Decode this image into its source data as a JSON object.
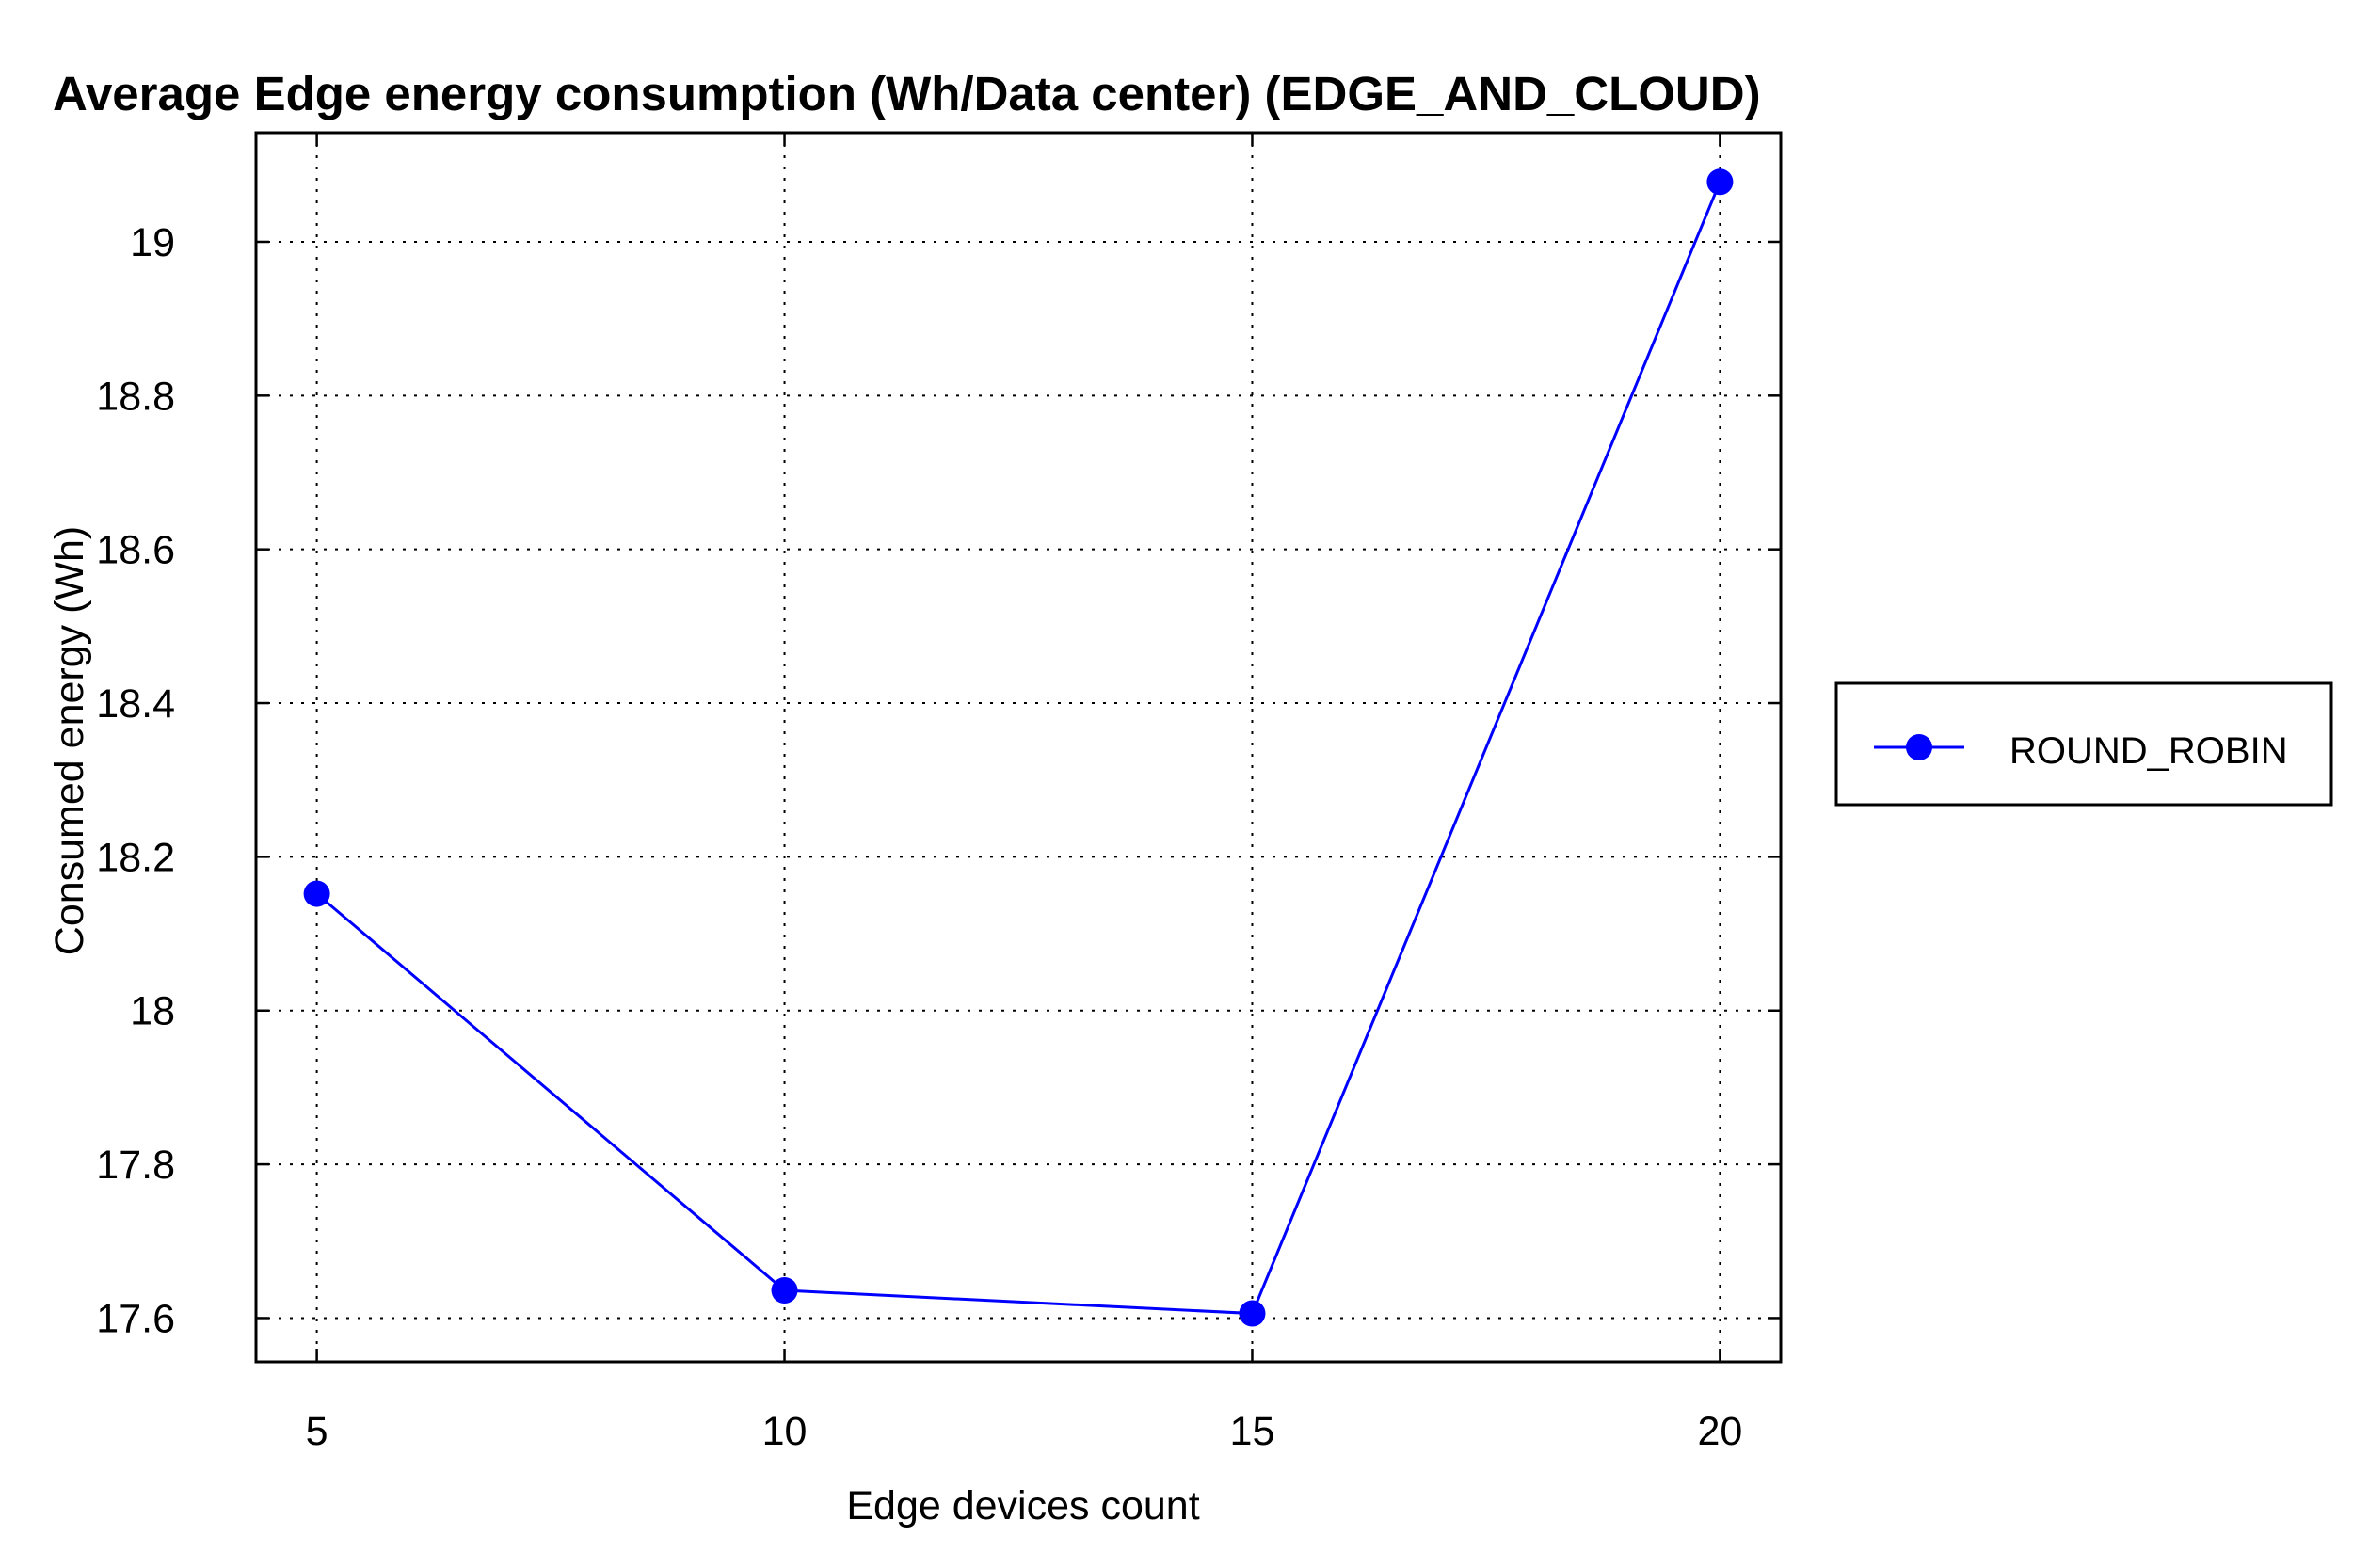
{
  "chart_data": {
    "type": "line",
    "title": "Average Edge energy consumption (Wh/Data center) (EDGE_AND_CLOUD)",
    "xlabel": "Edge devices count",
    "ylabel": "Consumed energy (Wh)",
    "x": [
      5,
      10,
      15,
      20
    ],
    "x_ticks": [
      "5",
      "10",
      "15",
      "20"
    ],
    "xlim": [
      4.35,
      20.65
    ],
    "y_ticks": [
      "17.6",
      "17.8",
      "18",
      "18.2",
      "18.4",
      "18.6",
      "18.8",
      "19"
    ],
    "y_tick_values": [
      17.6,
      17.8,
      18.0,
      18.2,
      18.4,
      18.6,
      18.8,
      19.0
    ],
    "ylim": [
      17.543,
      19.142
    ],
    "grid": true,
    "legend_position": "right",
    "series": [
      {
        "name": "ROUND_ROBIN",
        "color": "#0000ff",
        "marker": "circle",
        "values": [
          18.152,
          17.636,
          17.606,
          19.078
        ]
      }
    ]
  }
}
